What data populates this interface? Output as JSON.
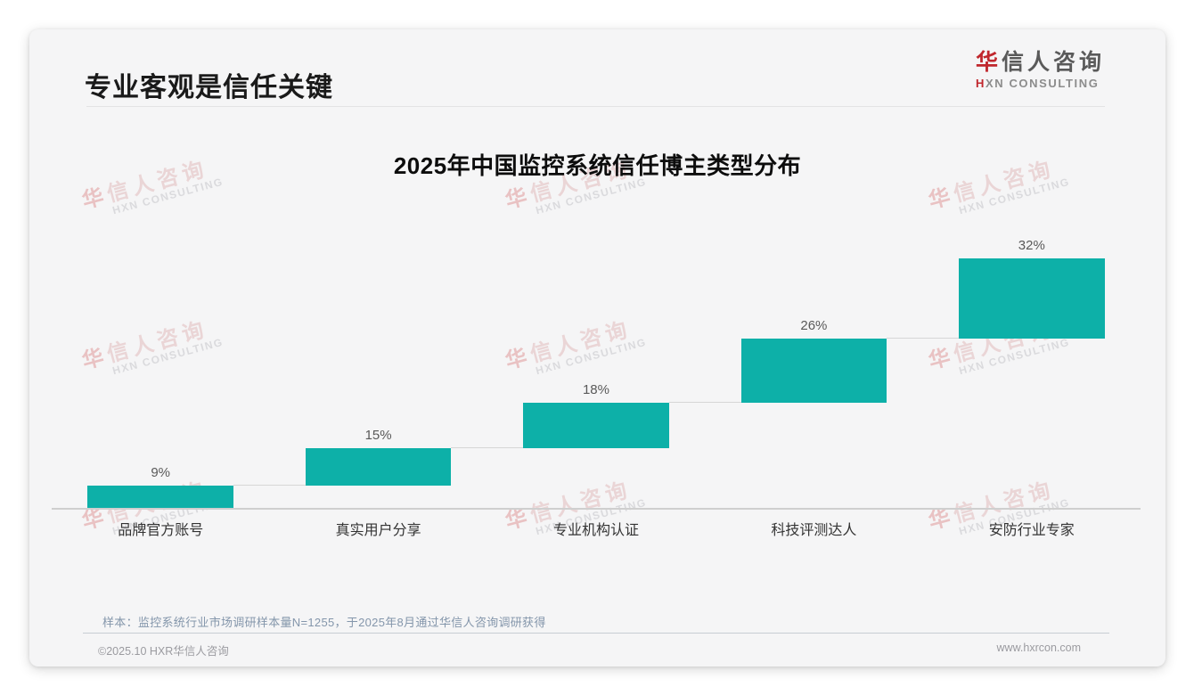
{
  "header": {
    "title": "专业客观是信任关键",
    "logo": {
      "zh_accent": "华",
      "zh_rest": "信人咨询",
      "en_accent": "H",
      "en_rest": "XN CONSULTING"
    }
  },
  "watermark": {
    "zh_first": "华",
    "zh_rest": "信人咨询",
    "en": "HXN CONSULTING"
  },
  "chart_data": {
    "type": "bar",
    "subtype": "waterfall-steps",
    "title": "2025年中国监控系统信任博主类型分布",
    "categories": [
      "品牌官方账号",
      "真实用户分享",
      "专业机构认证",
      "科技评测达人",
      "安防行业专家"
    ],
    "values": [
      9,
      15,
      18,
      26,
      32
    ],
    "value_labels": [
      "9%",
      "15%",
      "18%",
      "26%",
      "32%"
    ],
    "unit": "%",
    "ylim": [
      0,
      100
    ],
    "cumulative_tops": [
      9,
      24,
      42,
      68,
      100
    ],
    "bar_color": "#0db0a8",
    "connector_color": "#d6d6d6",
    "legend": null,
    "grid": false
  },
  "note": {
    "text": "样本：监控系统行业市场调研样本量N=1255，于2025年8月通过华信人咨询调研获得"
  },
  "footer": {
    "copyright": "©2025.10 HXR华信人咨询",
    "website": "www.hxrcon.com"
  },
  "colors": {
    "accent_red": "#c0272d",
    "bar_teal": "#0db0a8",
    "note_blue": "#8496ab",
    "card_bg": "#f5f5f6"
  }
}
